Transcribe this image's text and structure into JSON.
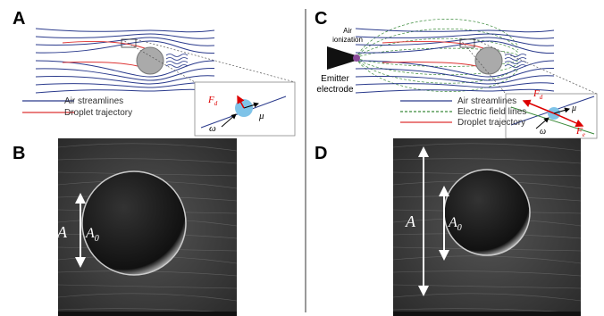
{
  "panel_labels": [
    "A",
    "B",
    "C",
    "D"
  ],
  "panel_a": {
    "legend": [
      "Air streamlines",
      "Droplet trajectory"
    ],
    "inset": {
      "drag": {
        "symbol": "F",
        "sub": "d"
      },
      "mu": "μ",
      "omega": "ω"
    }
  },
  "panel_b": {
    "amplitude": "A",
    "amplitude_0": {
      "symbol": "A",
      "sub": "0"
    }
  },
  "panel_c": {
    "ionization": [
      "Air",
      "ionization"
    ],
    "electrode": [
      "Emitter",
      "electrode"
    ],
    "legend": [
      "Air streamlines",
      "Electric field lines",
      "Droplet trajectory"
    ],
    "inset": {
      "drag": {
        "symbol": "F",
        "sub": "d"
      },
      "electric": {
        "symbol": "F",
        "sub": "e"
      },
      "mu": "μ",
      "omega": "ω"
    }
  },
  "panel_d": {
    "amplitude": "A",
    "amplitude_0": {
      "symbol": "A",
      "sub": "0"
    }
  }
}
